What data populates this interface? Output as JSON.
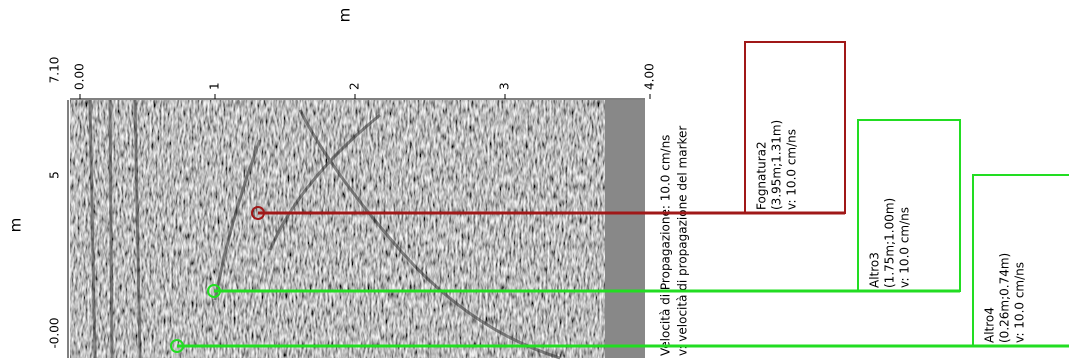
{
  "axis_top": {
    "label": "m",
    "ticks": [
      "0.00",
      "1",
      "2",
      "3",
      "4.00"
    ]
  },
  "axis_left": {
    "label": "m",
    "ticks": [
      "7.10",
      "5",
      "-0.00"
    ]
  },
  "legend": [
    "Velocità di Propagazione:  10.0 cm/ns",
    "v: velocità di propagazione del marker"
  ],
  "markers": [
    {
      "name": "Fognatura2",
      "position": "(3.95m;1.31m)",
      "velocity": "v: 10.0 cm/ns"
    },
    {
      "name": "Altro3",
      "position": "(1.75m;1.00m)",
      "velocity": "v: 10.0 cm/ns"
    },
    {
      "name": "Altro4",
      "position": "(0.26m;0.74m)",
      "velocity": "v: 10.0 cm/ns"
    }
  ]
}
